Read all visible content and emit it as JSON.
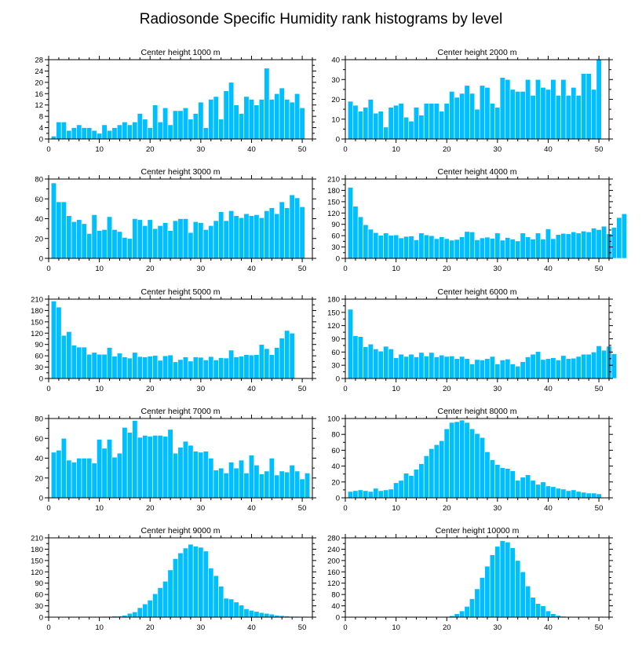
{
  "title": "Radiosonde Specific Humidity rank histograms by level",
  "chart_data": [
    {
      "type": "bar",
      "title": "Center height 1000 m",
      "xlim": [
        0,
        52
      ],
      "ylim": [
        0,
        28
      ],
      "xticks": [
        0,
        10,
        20,
        30,
        40,
        50
      ],
      "yticks": [
        0,
        4,
        8,
        12,
        16,
        20,
        24,
        28
      ],
      "values": [
        1,
        6,
        6,
        3,
        4,
        5,
        4,
        4,
        3,
        2,
        5,
        3,
        4,
        5,
        6,
        5,
        6,
        9,
        7,
        4,
        12,
        6,
        11,
        5,
        10,
        10,
        11,
        7,
        9,
        13,
        4,
        14,
        15,
        7,
        17,
        20,
        12,
        9,
        15,
        14,
        12,
        14,
        25,
        14,
        16,
        18,
        14,
        13,
        16,
        11
      ]
    },
    {
      "type": "bar",
      "title": "Center height 2000 m",
      "xlim": [
        0,
        52
      ],
      "ylim": [
        0,
        40
      ],
      "xticks": [
        0,
        10,
        20,
        30,
        40,
        50
      ],
      "yticks": [
        0,
        10,
        20,
        30,
        40
      ],
      "values": [
        19,
        17,
        14,
        16,
        20,
        13,
        14,
        6,
        16,
        17,
        18,
        11,
        9,
        16,
        12,
        18,
        18,
        18,
        14,
        18,
        24,
        21,
        23,
        27,
        23,
        15,
        27,
        26,
        18,
        16,
        31,
        30,
        25,
        24,
        24,
        30,
        22,
        30,
        26,
        25,
        30,
        22,
        30,
        22,
        26,
        22,
        33,
        33,
        25,
        40
      ]
    },
    {
      "type": "bar",
      "title": "Center height 3000 m",
      "xlim": [
        0,
        52
      ],
      "ylim": [
        0,
        80
      ],
      "xticks": [
        0,
        10,
        20,
        30,
        40,
        50
      ],
      "yticks": [
        0,
        20,
        40,
        60,
        80
      ],
      "values": [
        76,
        57,
        57,
        43,
        37,
        39,
        35,
        25,
        44,
        28,
        29,
        42,
        29,
        27,
        21,
        20,
        40,
        39,
        33,
        39,
        30,
        33,
        36,
        28,
        38,
        40,
        40,
        26,
        37,
        36,
        29,
        33,
        38,
        47,
        38,
        48,
        43,
        41,
        45,
        43,
        44,
        41,
        48,
        51,
        45,
        57,
        51,
        64,
        61,
        52
      ]
    },
    {
      "type": "bar",
      "title": "Center height 4000 m",
      "xlim": [
        0,
        52
      ],
      "ylim": [
        0,
        210
      ],
      "xticks": [
        0,
        10,
        20,
        30,
        40,
        50
      ],
      "yticks": [
        0,
        30,
        60,
        90,
        120,
        150,
        180,
        210
      ],
      "values": [
        188,
        138,
        110,
        89,
        77,
        68,
        61,
        67,
        61,
        62,
        54,
        58,
        59,
        49,
        67,
        62,
        60,
        52,
        57,
        52,
        48,
        50,
        57,
        71,
        70,
        49,
        54,
        56,
        53,
        67,
        48,
        55,
        51,
        46,
        67,
        57,
        51,
        67,
        51,
        78,
        52,
        63,
        66,
        65,
        70,
        67,
        72,
        70,
        80,
        76,
        85,
        65,
        82,
        108,
        118
      ]
    },
    {
      "type": "bar",
      "title": "Center height 5000 m",
      "xlim": [
        0,
        52
      ],
      "ylim": [
        0,
        210
      ],
      "xticks": [
        0,
        10,
        20,
        30,
        40,
        50
      ],
      "yticks": [
        0,
        30,
        60,
        90,
        120,
        150,
        180,
        210
      ],
      "values": [
        205,
        189,
        114,
        124,
        88,
        83,
        83,
        64,
        69,
        64,
        64,
        82,
        59,
        67,
        57,
        54,
        69,
        58,
        57,
        59,
        61,
        48,
        60,
        62,
        44,
        50,
        57,
        46,
        57,
        56,
        49,
        58,
        49,
        55,
        54,
        75,
        57,
        59,
        63,
        62,
        63,
        90,
        79,
        63,
        82,
        107,
        127,
        120
      ]
    },
    {
      "type": "bar",
      "title": "Center height 6000 m",
      "xlim": [
        0,
        52
      ],
      "ylim": [
        0,
        180
      ],
      "xticks": [
        0,
        10,
        20,
        30,
        40,
        50
      ],
      "yticks": [
        0,
        30,
        60,
        90,
        120,
        150,
        180
      ],
      "values": [
        157,
        97,
        95,
        72,
        78,
        67,
        62,
        73,
        67,
        47,
        55,
        50,
        55,
        49,
        59,
        51,
        59,
        49,
        53,
        50,
        51,
        45,
        50,
        45,
        33,
        43,
        42,
        45,
        50,
        33,
        42,
        44,
        33,
        28,
        38,
        49,
        55,
        61,
        43,
        45,
        47,
        42,
        52,
        45,
        46,
        50,
        55,
        55,
        60,
        74,
        64,
        73,
        56
      ]
    },
    {
      "type": "bar",
      "title": "Center height 7000 m",
      "xlim": [
        0,
        52
      ],
      "ylim": [
        0,
        80
      ],
      "xticks": [
        0,
        10,
        20,
        30,
        40,
        50
      ],
      "yticks": [
        0,
        20,
        40,
        60,
        80
      ],
      "values": [
        46,
        48,
        60,
        38,
        36,
        40,
        40,
        40,
        35,
        59,
        50,
        59,
        41,
        45,
        71,
        66,
        78,
        61,
        63,
        62,
        63,
        63,
        62,
        69,
        45,
        51,
        57,
        53,
        47,
        46,
        47,
        40,
        28,
        30,
        25,
        36,
        30,
        38,
        25,
        43,
        33,
        24,
        27,
        40,
        23,
        27,
        26,
        33,
        27,
        19,
        25
      ]
    },
    {
      "type": "bar",
      "title": "Center height 8000 m",
      "xlim": [
        0,
        52
      ],
      "ylim": [
        0,
        100
      ],
      "xticks": [
        0,
        10,
        20,
        30,
        40,
        50
      ],
      "yticks": [
        0,
        20,
        40,
        60,
        80,
        100
      ],
      "values": [
        8,
        9,
        10,
        9,
        8,
        12,
        9,
        10,
        11,
        19,
        22,
        31,
        28,
        36,
        43,
        53,
        62,
        67,
        72,
        87,
        95,
        96,
        98,
        95,
        87,
        81,
        76,
        58,
        48,
        42,
        38,
        37,
        34,
        22,
        26,
        29,
        22,
        17,
        20,
        15,
        14,
        12,
        11,
        9,
        10,
        8,
        7,
        6,
        6,
        5
      ]
    },
    {
      "type": "bar",
      "title": "Center height 9000 m",
      "xlim": [
        0,
        52
      ],
      "ylim": [
        0,
        210
      ],
      "xticks": [
        0,
        10,
        20,
        30,
        40,
        50
      ],
      "yticks": [
        0,
        30,
        60,
        90,
        120,
        150,
        180,
        210
      ],
      "values": [
        0,
        0,
        0,
        0,
        0,
        0,
        0,
        0,
        1,
        1,
        2,
        2,
        3,
        3,
        5,
        10,
        14,
        25,
        35,
        45,
        62,
        78,
        95,
        125,
        155,
        170,
        183,
        193,
        188,
        185,
        175,
        130,
        110,
        82,
        50,
        48,
        40,
        32,
        22,
        18,
        15,
        12,
        10,
        8,
        5,
        4,
        3,
        2,
        2,
        1
      ]
    },
    {
      "type": "bar",
      "title": "Center height 10000 m",
      "xlim": [
        0,
        52
      ],
      "ylim": [
        0,
        280
      ],
      "xticks": [
        0,
        10,
        20,
        30,
        40,
        50
      ],
      "yticks": [
        0,
        40,
        80,
        120,
        160,
        200,
        240,
        280
      ],
      "values": [
        0,
        0,
        0,
        0,
        0,
        0,
        0,
        0,
        0,
        0,
        0,
        0,
        0,
        0,
        0,
        0,
        0,
        0,
        1,
        2,
        5,
        12,
        22,
        38,
        65,
        100,
        140,
        180,
        220,
        250,
        270,
        265,
        245,
        200,
        160,
        110,
        70,
        48,
        40,
        22,
        12,
        6,
        3,
        1,
        0,
        0,
        0,
        0,
        0,
        0
      ]
    }
  ]
}
